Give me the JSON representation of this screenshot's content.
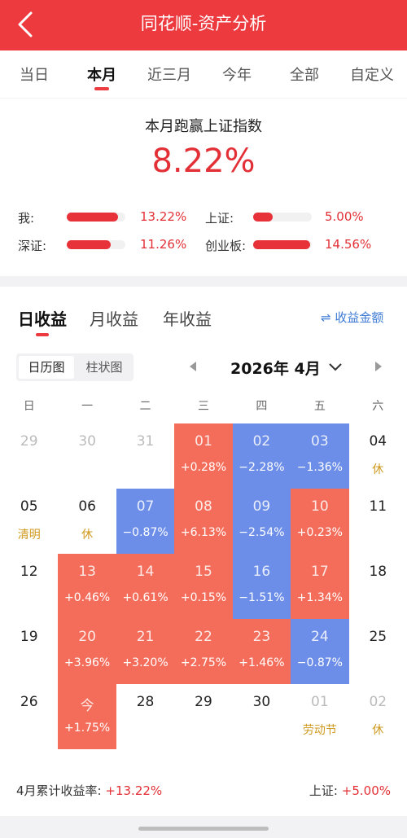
{
  "header": {
    "title": "同花顺-资产分析"
  },
  "tabs": [
    {
      "label": "当日"
    },
    {
      "label": "本月"
    },
    {
      "label": "近三月"
    },
    {
      "label": "今年"
    },
    {
      "label": "全部"
    },
    {
      "label": "自定义"
    }
  ],
  "summary": {
    "headline": "本月跑赢上证指数",
    "value": "8.22%",
    "compare": [
      {
        "label": "我:",
        "value": "13.22%",
        "fill": 0.88
      },
      {
        "label": "上证:",
        "value": "5.00%",
        "fill": 0.33
      },
      {
        "label": "深证:",
        "value": "11.26%",
        "fill": 0.75
      },
      {
        "label": "创业板:",
        "value": "14.56%",
        "fill": 0.97
      }
    ]
  },
  "returns": {
    "tabs": [
      "日收益",
      "月收益",
      "年收益"
    ],
    "toggle": "⇌ 收益金额",
    "view_toggle": [
      "日历图",
      "柱状图"
    ],
    "month_label": "2026年 4月",
    "weekdays": [
      "日",
      "一",
      "二",
      "三",
      "四",
      "五",
      "六"
    ],
    "weeks": [
      [
        {
          "day": "29",
          "kind": "other"
        },
        {
          "day": "30",
          "kind": "other"
        },
        {
          "day": "31",
          "kind": "other"
        },
        {
          "day": "01",
          "kind": "up",
          "value": "+0.28%"
        },
        {
          "day": "02",
          "kind": "down",
          "value": "−2.28%"
        },
        {
          "day": "03",
          "kind": "down",
          "value": "−1.36%"
        },
        {
          "day": "04",
          "kind": "plain",
          "note": "休"
        }
      ],
      [
        {
          "day": "05",
          "kind": "plain",
          "note": "清明"
        },
        {
          "day": "06",
          "kind": "plain",
          "note": "休"
        },
        {
          "day": "07",
          "kind": "down",
          "value": "−0.87%"
        },
        {
          "day": "08",
          "kind": "up",
          "value": "+6.13%"
        },
        {
          "day": "09",
          "kind": "down",
          "value": "−2.54%"
        },
        {
          "day": "10",
          "kind": "up",
          "value": "+0.23%"
        },
        {
          "day": "11",
          "kind": "plain"
        }
      ],
      [
        {
          "day": "12",
          "kind": "plain"
        },
        {
          "day": "13",
          "kind": "up",
          "value": "+0.46%"
        },
        {
          "day": "14",
          "kind": "up",
          "value": "+0.61%"
        },
        {
          "day": "15",
          "kind": "up",
          "value": "+0.15%"
        },
        {
          "day": "16",
          "kind": "down",
          "value": "−1.51%"
        },
        {
          "day": "17",
          "kind": "up",
          "value": "+1.34%"
        },
        {
          "day": "18",
          "kind": "plain"
        }
      ],
      [
        {
          "day": "19",
          "kind": "plain"
        },
        {
          "day": "20",
          "kind": "up",
          "value": "+3.96%"
        },
        {
          "day": "21",
          "kind": "up",
          "value": "+3.20%"
        },
        {
          "day": "22",
          "kind": "up",
          "value": "+2.75%"
        },
        {
          "day": "23",
          "kind": "up",
          "value": "+1.46%"
        },
        {
          "day": "24",
          "kind": "down",
          "value": "−0.87%"
        },
        {
          "day": "25",
          "kind": "plain"
        }
      ],
      [
        {
          "day": "26",
          "kind": "plain"
        },
        {
          "day": "今",
          "kind": "up",
          "value": "+1.75%"
        },
        {
          "day": "28",
          "kind": "plain"
        },
        {
          "day": "29",
          "kind": "plain"
        },
        {
          "day": "30",
          "kind": "plain"
        },
        {
          "day": "01",
          "kind": "other",
          "note": "劳动节"
        },
        {
          "day": "02",
          "kind": "other",
          "note": "休"
        }
      ]
    ],
    "footer_left_label": "4月累计收益率:",
    "footer_left_value": "+13.22%",
    "footer_right_label": "上证:",
    "footer_right_value": "+5.00%"
  },
  "colors": {
    "brand": "#ec3a3f",
    "up": "#f46d5b",
    "down": "#6c8ee8",
    "holiday": "#cf9a1f",
    "link": "#3d7bd6"
  }
}
